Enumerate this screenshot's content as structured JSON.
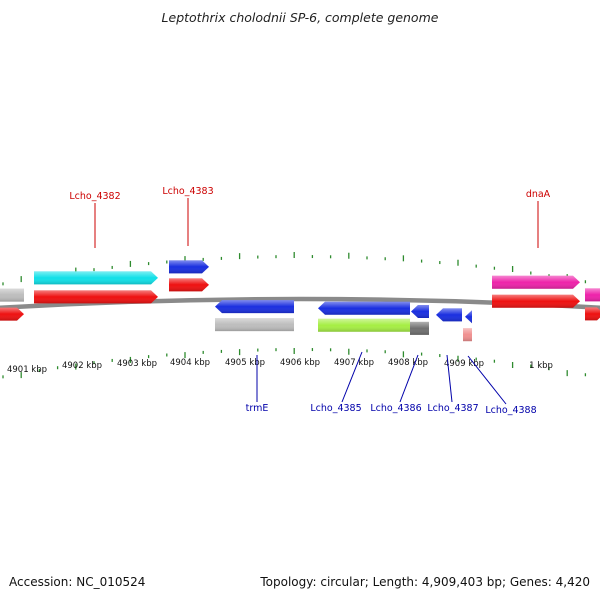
{
  "title": "Leptothrix cholodnii SP-6, complete genome",
  "footer": {
    "accession": "Accession: NC_010524",
    "summary": "Topology: circular; Length: 4,909,403 bp; Genes: 4,420"
  },
  "colors": {
    "backbone": "#8a8a8a",
    "tick": "#2e8b2e",
    "label_top": "#cc0000",
    "label_bottom": "#0000aa",
    "red": "#ee1111",
    "cyan": "#11e0e8",
    "blue": "#1a2fe0",
    "magenta": "#ee22aa",
    "gray": "#bdbdbd",
    "lime": "#a6ee44",
    "darkgray": "#707070",
    "pink": "#f09090"
  },
  "scale_labels": [
    {
      "text": "4901 kbp"
    },
    {
      "text": "4902 kbp"
    },
    {
      "text": "4903 kbp"
    },
    {
      "text": "4904 kbp"
    },
    {
      "text": "4905 kbp"
    },
    {
      "text": "4906 kbp"
    },
    {
      "text": "4907 kbp"
    },
    {
      "text": "4908 kbp"
    },
    {
      "text": "4909 kbp"
    },
    {
      "text": "1 kbp"
    }
  ],
  "gene_labels": [
    {
      "text": "Lcho_4382",
      "side": "top"
    },
    {
      "text": "Lcho_4383",
      "side": "top"
    },
    {
      "text": "dnaA",
      "side": "top"
    },
    {
      "text": "trmE",
      "side": "bottom"
    },
    {
      "text": "Lcho_4385",
      "side": "bottom"
    },
    {
      "text": "Lcho_4386",
      "side": "bottom"
    },
    {
      "text": "Lcho_4387",
      "side": "bottom"
    },
    {
      "text": "Lcho_4388",
      "side": "bottom"
    }
  ],
  "features": [
    {
      "name": "feature-gray-left",
      "color": "gray"
    },
    {
      "name": "feature-red-left",
      "color": "red"
    },
    {
      "name": "feature-cyan-lcho-4382",
      "color": "cyan"
    },
    {
      "name": "feature-red-lcho-4382",
      "color": "red"
    },
    {
      "name": "feature-blue-lcho-4383",
      "color": "blue"
    },
    {
      "name": "feature-red-lcho-4383",
      "color": "red"
    },
    {
      "name": "feature-magenta-dnaa",
      "color": "magenta"
    },
    {
      "name": "feature-red-dnaa",
      "color": "red"
    },
    {
      "name": "feature-magenta-right",
      "color": "magenta"
    },
    {
      "name": "feature-red-right",
      "color": "red"
    },
    {
      "name": "feature-blue-trme",
      "color": "blue"
    },
    {
      "name": "feature-gray-trme",
      "color": "gray"
    },
    {
      "name": "feature-blue-lcho-4385",
      "color": "blue"
    },
    {
      "name": "feature-lime-lcho-4385",
      "color": "lime"
    },
    {
      "name": "feature-darkgray-lcho-4386",
      "color": "darkgray"
    },
    {
      "name": "feature-blue-lcho-4386",
      "color": "blue"
    },
    {
      "name": "feature-blue-lcho-4387",
      "color": "blue"
    },
    {
      "name": "feature-blue-lcho-4388",
      "color": "blue"
    },
    {
      "name": "feature-pink-lcho-4388",
      "color": "pink"
    }
  ]
}
